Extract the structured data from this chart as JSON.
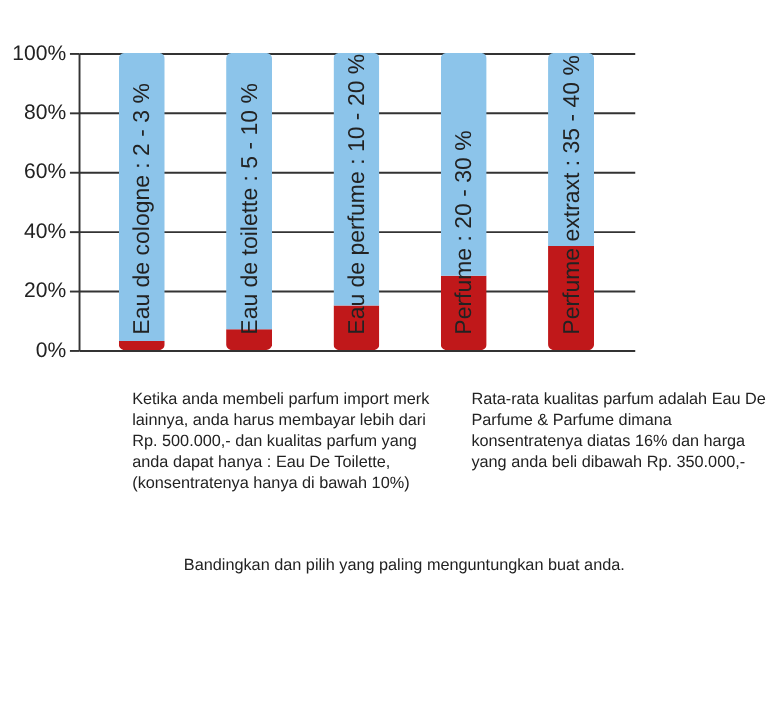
{
  "chart_data": {
    "type": "bar",
    "stacked": true,
    "categories": [
      "Eau de cologne : 2 - 3 %",
      "Eau de toilette : 5 - 10 %",
      "Eau de perfume : 10 - 20 %",
      "Perfume : 20 - 30 %",
      "Perfume extraxt : 35 - 40 %"
    ],
    "series": [
      {
        "color": "#c0181a",
        "values": [
          3,
          7,
          15,
          25,
          35
        ]
      },
      {
        "color": "#8cc4ea",
        "values": [
          97,
          93,
          85,
          75,
          65
        ]
      }
    ],
    "ylim": [
      0,
      100
    ],
    "yticks": [
      {
        "value": 0,
        "label": "0%"
      },
      {
        "value": 20,
        "label": "20%"
      },
      {
        "value": 40,
        "label": "40%"
      },
      {
        "value": 60,
        "label": "60%"
      },
      {
        "value": 80,
        "label": "80%"
      },
      {
        "value": 100,
        "label": "100%"
      }
    ],
    "grid": "y",
    "annotations": [
      "Ketika anda membeli parfum import merk\nlainnya, anda harus membayar lebih dari\nRp. 500.000,- dan kualitas parfum yang\nanda dapat hanya : Eau De Toilette,\n(konsentratenya hanya di bawah 10%)",
      "Rata-rata kualitas parfum adalah Eau De\nParfume & Parfume dimana\nkonsentratenya diatas 16% dan harga\nyang anda beli dibawah Rp. 350.000,-",
      "Bandingkan dan pilih yang paling menguntungkan buat anda."
    ]
  }
}
